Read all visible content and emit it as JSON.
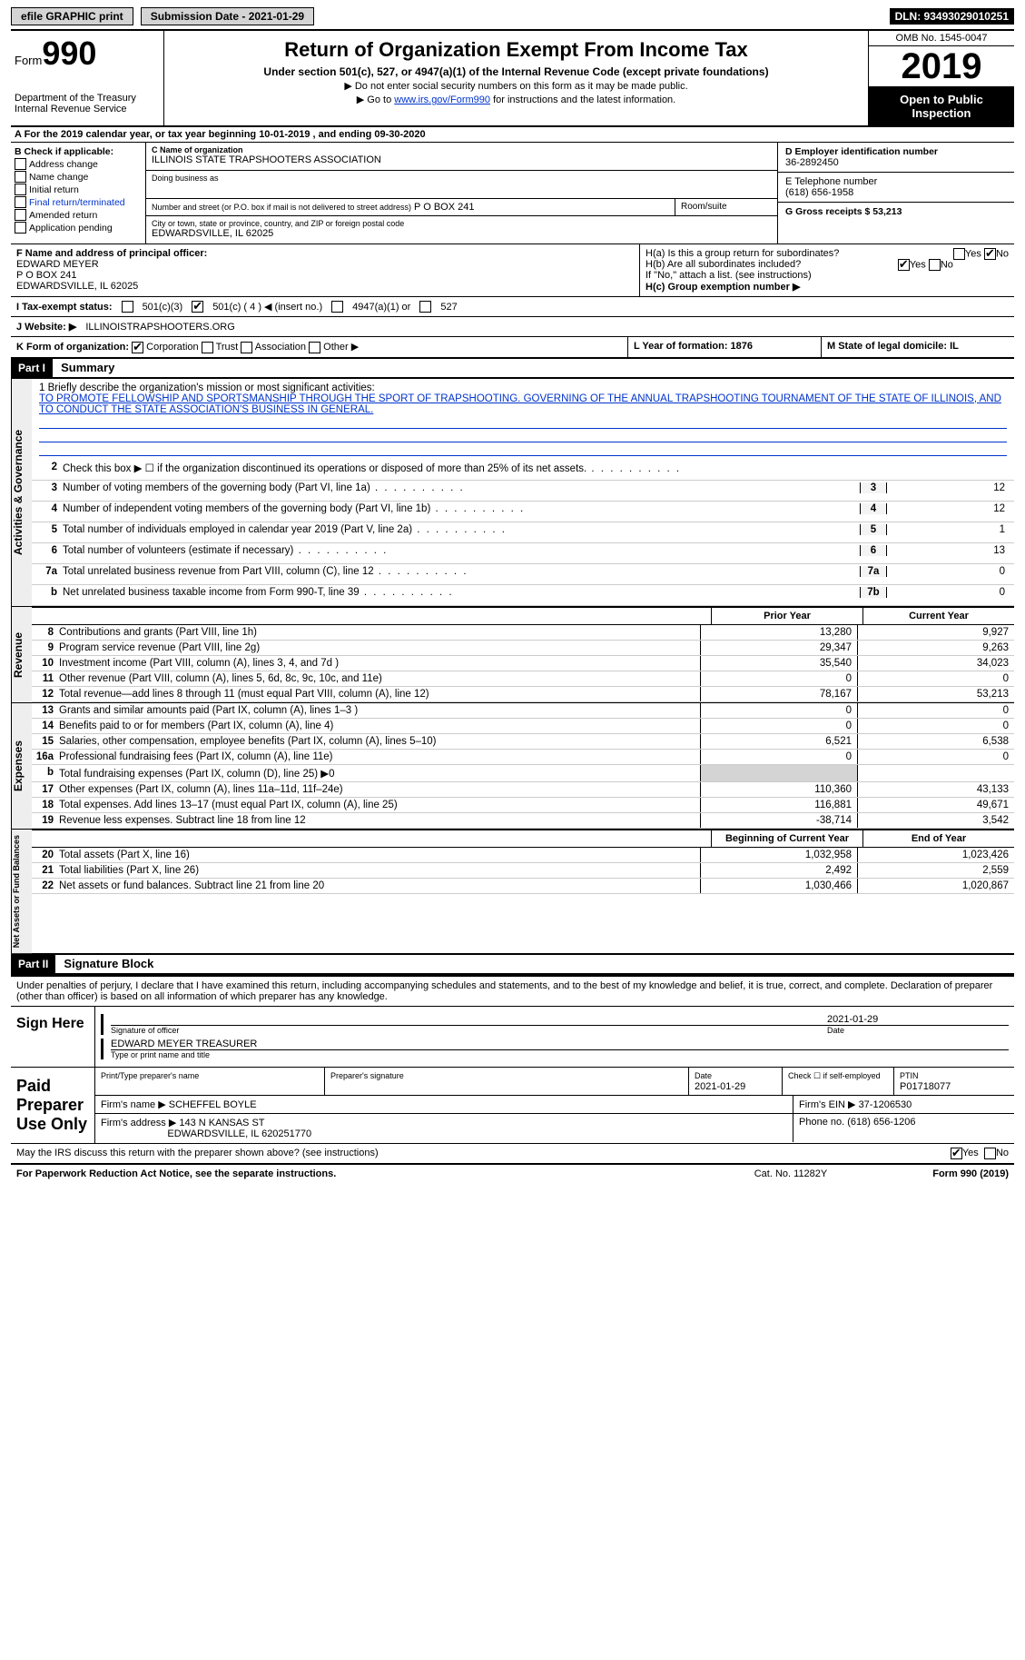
{
  "topbar": {
    "efile": "efile GRAPHIC print",
    "submission_label": "Submission Date - 2021-01-29",
    "dln": "DLN: 93493029010251"
  },
  "header": {
    "form_prefix": "Form",
    "form_number": "990",
    "title": "Return of Organization Exempt From Income Tax",
    "subtitle": "Under section 501(c), 527, or 4947(a)(1) of the Internal Revenue Code (except private foundations)",
    "note1": "▶ Do not enter social security numbers on this form as it may be made public.",
    "note2_pre": "▶ Go to ",
    "note2_link": "www.irs.gov/Form990",
    "note2_post": " for instructions and the latest information.",
    "dept": "Department of the Treasury\nInternal Revenue Service",
    "omb": "OMB No. 1545-0047",
    "year": "2019",
    "open_public": "Open to Public Inspection"
  },
  "row_a": "A For the 2019 calendar year, or tax year beginning 10-01-2019   , and ending 09-30-2020",
  "col_b": {
    "header": "B Check if applicable:",
    "items": [
      "Address change",
      "Name change",
      "Initial return",
      "Final return/terminated",
      "Amended return",
      "Application pending"
    ]
  },
  "col_c": {
    "name_lbl": "C Name of organization",
    "name": "ILLINOIS STATE TRAPSHOOTERS ASSOCIATION",
    "dba_lbl": "Doing business as",
    "dba": "",
    "addr_lbl": "Number and street (or P.O. box if mail is not delivered to street address)",
    "room_lbl": "Room/suite",
    "addr": "P O BOX 241",
    "city_lbl": "City or town, state or province, country, and ZIP or foreign postal code",
    "city": "EDWARDSVILLE, IL  62025"
  },
  "col_d": {
    "ein_lbl": "D Employer identification number",
    "ein": "36-2892450",
    "phone_lbl": "E Telephone number",
    "phone": "(618) 656-1958",
    "gross_lbl": "G Gross receipts $ 53,213"
  },
  "f_block": {
    "lbl": "F Name and address of principal officer:",
    "name": "EDWARD MEYER",
    "addr1": "P O BOX 241",
    "addr2": "EDWARDSVILLE, IL  62025"
  },
  "h_block": {
    "ha": "H(a)  Is this a group return for subordinates?",
    "hb": "H(b)  Are all subordinates included?",
    "hb_note": "If \"No,\" attach a list. (see instructions)",
    "hc": "H(c)  Group exemption number ▶"
  },
  "status": {
    "lbl": "I   Tax-exempt status:",
    "o1": "501(c)(3)",
    "o2": "501(c) ( 4 ) ◀ (insert no.)",
    "o3": "4947(a)(1) or",
    "o4": "527"
  },
  "website": {
    "lbl": "J  Website: ▶",
    "val": "ILLINOISTRAPSHOOTERS.ORG"
  },
  "k_row": {
    "lbl": "K Form of organization:",
    "o1": "Corporation",
    "o2": "Trust",
    "o3": "Association",
    "o4": "Other ▶"
  },
  "l_m": {
    "l": "L Year of formation: 1876",
    "m": "M State of legal domicile: IL"
  },
  "part1": {
    "hdr": "Part I",
    "title": "Summary"
  },
  "mission": {
    "q": "1  Briefly describe the organization's mission or most significant activities:",
    "text": "TO PROMOTE FELLOWSHIP AND SPORTSMANSHIP THROUGH THE SPORT OF TRAPSHOOTING. GOVERNING OF THE ANNUAL TRAPSHOOTING TOURNAMENT OF THE STATE OF ILLINOIS, AND TO CONDUCT THE STATE ASSOCIATION'S BUSINESS IN GENERAL."
  },
  "gov_lines": [
    {
      "n": "2",
      "d": "Check this box ▶ ☐ if the organization discontinued its operations or disposed of more than 25% of its net assets.",
      "box": "",
      "v": ""
    },
    {
      "n": "3",
      "d": "Number of voting members of the governing body (Part VI, line 1a)",
      "box": "3",
      "v": "12"
    },
    {
      "n": "4",
      "d": "Number of independent voting members of the governing body (Part VI, line 1b)",
      "box": "4",
      "v": "12"
    },
    {
      "n": "5",
      "d": "Total number of individuals employed in calendar year 2019 (Part V, line 2a)",
      "box": "5",
      "v": "1"
    },
    {
      "n": "6",
      "d": "Total number of volunteers (estimate if necessary)",
      "box": "6",
      "v": "13"
    },
    {
      "n": "7a",
      "d": "Total unrelated business revenue from Part VIII, column (C), line 12",
      "box": "7a",
      "v": "0"
    },
    {
      "n": "b",
      "d": "Net unrelated business taxable income from Form 990-T, line 39",
      "box": "7b",
      "v": "0"
    }
  ],
  "rev_head": {
    "c1": "Prior Year",
    "c2": "Current Year"
  },
  "revenue": [
    {
      "n": "8",
      "d": "Contributions and grants (Part VIII, line 1h)",
      "c1": "13,280",
      "c2": "9,927"
    },
    {
      "n": "9",
      "d": "Program service revenue (Part VIII, line 2g)",
      "c1": "29,347",
      "c2": "9,263"
    },
    {
      "n": "10",
      "d": "Investment income (Part VIII, column (A), lines 3, 4, and 7d )",
      "c1": "35,540",
      "c2": "34,023"
    },
    {
      "n": "11",
      "d": "Other revenue (Part VIII, column (A), lines 5, 6d, 8c, 9c, 10c, and 11e)",
      "c1": "0",
      "c2": "0"
    },
    {
      "n": "12",
      "d": "Total revenue—add lines 8 through 11 (must equal Part VIII, column (A), line 12)",
      "c1": "78,167",
      "c2": "53,213"
    }
  ],
  "expenses": [
    {
      "n": "13",
      "d": "Grants and similar amounts paid (Part IX, column (A), lines 1–3 )",
      "c1": "0",
      "c2": "0"
    },
    {
      "n": "14",
      "d": "Benefits paid to or for members (Part IX, column (A), line 4)",
      "c1": "0",
      "c2": "0"
    },
    {
      "n": "15",
      "d": "Salaries, other compensation, employee benefits (Part IX, column (A), lines 5–10)",
      "c1": "6,521",
      "c2": "6,538"
    },
    {
      "n": "16a",
      "d": "Professional fundraising fees (Part IX, column (A), line 11e)",
      "c1": "0",
      "c2": "0"
    },
    {
      "n": "b",
      "d": "Total fundraising expenses (Part IX, column (D), line 25) ▶0",
      "c1": "",
      "c2": "",
      "shade": true
    },
    {
      "n": "17",
      "d": "Other expenses (Part IX, column (A), lines 11a–11d, 11f–24e)",
      "c1": "110,360",
      "c2": "43,133"
    },
    {
      "n": "18",
      "d": "Total expenses. Add lines 13–17 (must equal Part IX, column (A), line 25)",
      "c1": "116,881",
      "c2": "49,671"
    },
    {
      "n": "19",
      "d": "Revenue less expenses. Subtract line 18 from line 12",
      "c1": "-38,714",
      "c2": "3,542"
    }
  ],
  "na_head": {
    "c1": "Beginning of Current Year",
    "c2": "End of Year"
  },
  "netassets": [
    {
      "n": "20",
      "d": "Total assets (Part X, line 16)",
      "c1": "1,032,958",
      "c2": "1,023,426"
    },
    {
      "n": "21",
      "d": "Total liabilities (Part X, line 26)",
      "c1": "2,492",
      "c2": "2,559"
    },
    {
      "n": "22",
      "d": "Net assets or fund balances. Subtract line 21 from line 20",
      "c1": "1,030,466",
      "c2": "1,020,867"
    }
  ],
  "part2": {
    "hdr": "Part II",
    "title": "Signature Block",
    "decl": "Under penalties of perjury, I declare that I have examined this return, including accompanying schedules and statements, and to the best of my knowledge and belief, it is true, correct, and complete. Declaration of preparer (other than officer) is based on all information of which preparer has any knowledge."
  },
  "sign": {
    "here": "Sign Here",
    "date": "2021-01-29",
    "sig_lbl": "Signature of officer",
    "date_lbl": "Date",
    "name": "EDWARD MEYER TREASURER",
    "name_lbl": "Type or print name and title"
  },
  "prep": {
    "here": "Paid Preparer Use Only",
    "h1": "Print/Type preparer's name",
    "h2": "Preparer's signature",
    "h3": "Date",
    "h3v": "2021-01-29",
    "h4": "Check ☐ if self-employed",
    "h5": "PTIN",
    "h5v": "P01718077",
    "firm_lbl": "Firm's name    ▶",
    "firm": "SCHEFFEL BOYLE",
    "ein_lbl": "Firm's EIN ▶",
    "ein": "37-1206530",
    "addr_lbl": "Firm's address ▶",
    "addr": "143 N KANSAS ST",
    "addr2": "EDWARDSVILLE, IL  620251770",
    "phone_lbl": "Phone no.",
    "phone": "(618) 656-1206"
  },
  "footer": {
    "irs_q": "May the IRS discuss this return with the preparer shown above? (see instructions)",
    "notice": "For Paperwork Reduction Act Notice, see the separate instructions.",
    "cat": "Cat. No. 11282Y",
    "form": "Form 990 (2019)"
  },
  "vtabs": {
    "gov": "Activities & Governance",
    "rev": "Revenue",
    "exp": "Expenses",
    "na": "Net Assets or Fund Balances"
  },
  "yn": {
    "yes": "Yes",
    "no": "No"
  }
}
